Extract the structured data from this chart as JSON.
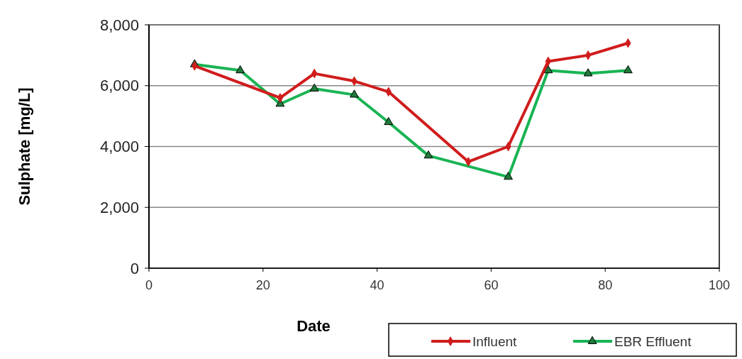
{
  "chart_data": {
    "type": "line",
    "xlabel": "Date",
    "ylabel": "Sulphate  [mg/L]",
    "xlim": [
      0,
      100
    ],
    "xticks": [
      0,
      20,
      40,
      60,
      80,
      100
    ],
    "ylim": [
      0,
      8000
    ],
    "yticks": [
      {
        "value": 0,
        "label": "0"
      },
      {
        "value": 2000,
        "label": "2,000"
      },
      {
        "value": 4000,
        "label": "4,000"
      },
      {
        "value": 6000,
        "label": "6,000"
      },
      {
        "value": 8000,
        "label": "8,000"
      }
    ],
    "grid": "y",
    "legend": "bottom right",
    "line_style": "solid",
    "series": [
      {
        "name": "Influent",
        "color": "#d01c1c",
        "marker": "diamond",
        "x": [
          8,
          23,
          29,
          36,
          42,
          56,
          63,
          70,
          77,
          84
        ],
        "values": [
          6650,
          5600,
          6400,
          6150,
          5800,
          3500,
          4000,
          6800,
          7000,
          7400
        ]
      },
      {
        "name": "EBR Effluent",
        "color": "#19b454",
        "marker": "triangle",
        "x": [
          8,
          16,
          23,
          29,
          36,
          42,
          49,
          63,
          70,
          77,
          84
        ],
        "values": [
          6700,
          6500,
          5400,
          5900,
          5700,
          4800,
          3700,
          3000,
          6500,
          6400,
          6500
        ]
      }
    ]
  }
}
